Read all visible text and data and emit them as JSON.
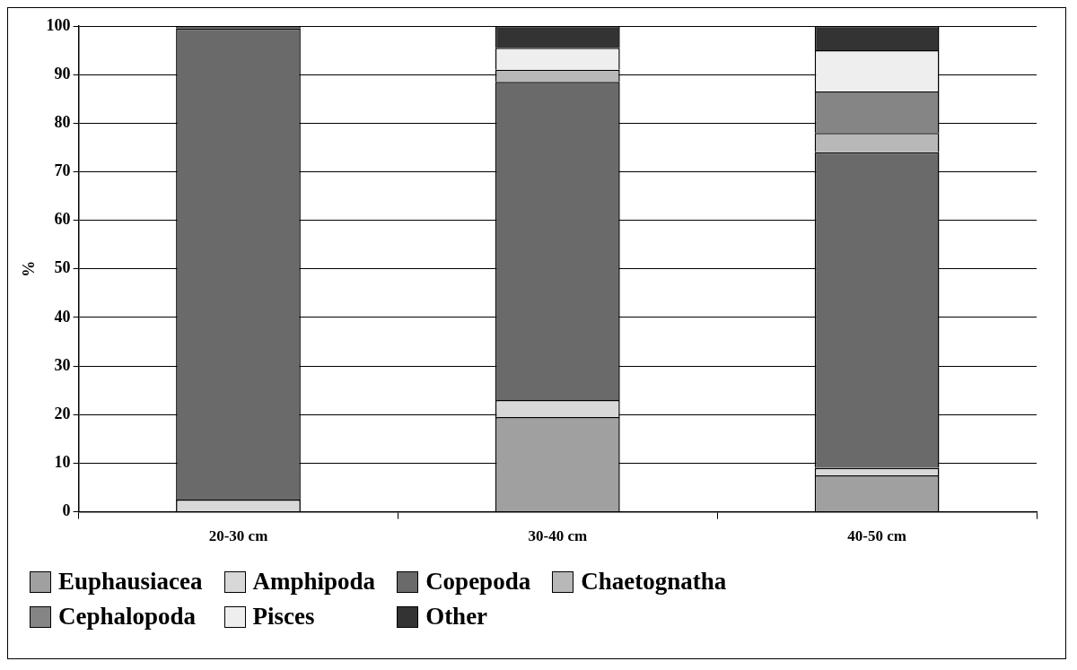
{
  "chart_data": {
    "type": "bar",
    "stacked": true,
    "ylabel": "%",
    "categories": [
      "20-30 cm",
      "30-40 cm",
      "40-50 cm"
    ],
    "series": [
      {
        "name": "Euphausiacea",
        "color": "#a0a0a0",
        "values": [
          0,
          19.5,
          7.5
        ]
      },
      {
        "name": "Amphipoda",
        "color": "#d8d8d8",
        "values": [
          2.5,
          3.5,
          1.5
        ]
      },
      {
        "name": "Copepoda",
        "color": "#6a6a6a",
        "values": [
          97,
          65.5,
          65
        ]
      },
      {
        "name": "Chaetognatha",
        "color": "#b8b8b8",
        "values": [
          0,
          2.5,
          4
        ]
      },
      {
        "name": "Cephalopoda",
        "color": "#858585",
        "values": [
          0,
          0,
          8.5
        ]
      },
      {
        "name": "Pisces",
        "color": "#eeeeee",
        "values": [
          0,
          4.5,
          8.5
        ]
      },
      {
        "name": "Other",
        "color": "#333333",
        "values": [
          0.5,
          4.5,
          5
        ]
      }
    ],
    "ylim": [
      0,
      100
    ],
    "yticks": [
      0,
      10,
      20,
      30,
      40,
      50,
      60,
      70,
      80,
      90,
      100
    ],
    "grid": "y",
    "legend": "bottom"
  }
}
